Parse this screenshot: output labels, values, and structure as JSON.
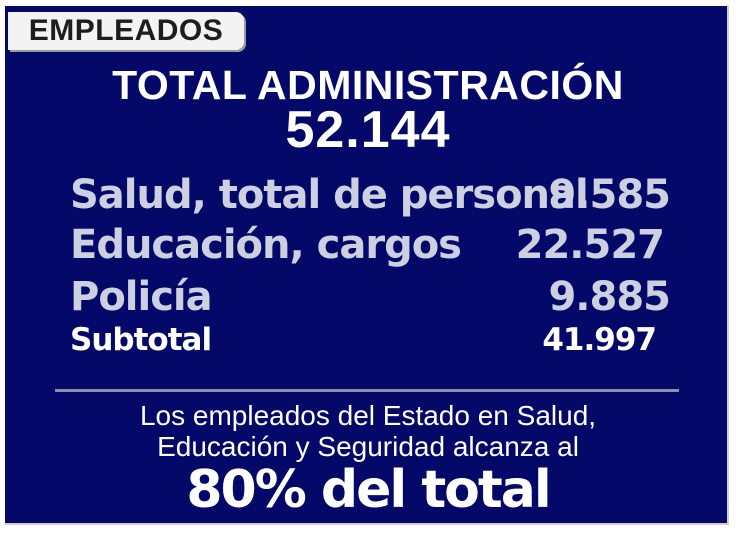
{
  "tag": {
    "label": "EMPLEADOS"
  },
  "header": {
    "title": "TOTAL ADMINISTRACIÓN",
    "total": "52.144"
  },
  "rows": [
    {
      "label": "Salud, total de personal",
      "value": "9.585"
    },
    {
      "label": "Educación, cargos",
      "value": "22.527"
    },
    {
      "label": "Policía",
      "value": "9.885"
    },
    {
      "label": "Subtotal",
      "value": "41.997"
    }
  ],
  "note": {
    "line1": "Los empleados del Estado en Salud,",
    "line2": "Educación y Seguridad alcanza al",
    "highlight": "80% del total"
  },
  "colors": {
    "background": "#030869",
    "text": "#ffffff",
    "muted_text": "#cdd0e0",
    "tag_background": "#f3f3f3"
  }
}
